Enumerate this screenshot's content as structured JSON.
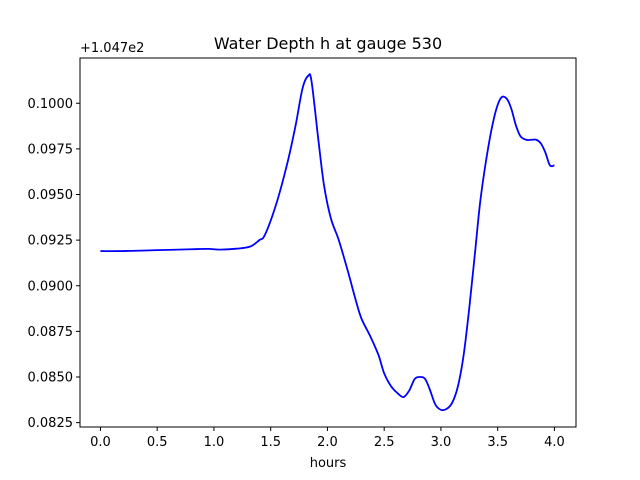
{
  "chart_data": {
    "type": "line",
    "title": "Water Depth h at gauge 530",
    "xlabel": "hours",
    "ylabel": "",
    "offset_label": "+1.047e2",
    "xlim": [
      -0.18,
      4.19
    ],
    "ylim": [
      0.08226,
      0.10248
    ],
    "grid": false,
    "x_ticks": [
      0.0,
      0.5,
      1.0,
      1.5,
      2.0,
      2.5,
      3.0,
      3.5,
      4.0
    ],
    "x_tick_labels": [
      "0.0",
      "0.5",
      "1.0",
      "1.5",
      "2.0",
      "2.5",
      "3.0",
      "3.5",
      "4.0"
    ],
    "y_ticks": [
      0.0825,
      0.085,
      0.0875,
      0.09,
      0.0925,
      0.095,
      0.0975,
      0.1
    ],
    "y_tick_labels": [
      "0.0825",
      "0.0850",
      "0.0875",
      "0.0900",
      "0.0925",
      "0.0950",
      "0.0975",
      "0.1000"
    ],
    "series": [
      {
        "color": "#0000ff",
        "x": [
          0.0,
          0.2,
          0.5,
          0.8,
          0.95,
          1.05,
          1.2,
          1.32,
          1.4,
          1.45,
          1.55,
          1.65,
          1.72,
          1.78,
          1.83,
          1.86,
          1.92,
          1.97,
          2.03,
          2.1,
          2.18,
          2.25,
          2.3,
          2.38,
          2.45,
          2.5,
          2.56,
          2.62,
          2.67,
          2.72,
          2.77,
          2.82,
          2.86,
          2.9,
          2.95,
          3.0,
          3.05,
          3.1,
          3.15,
          3.2,
          3.25,
          3.3,
          3.35,
          3.42,
          3.48,
          3.53,
          3.58,
          3.62,
          3.66,
          3.7,
          3.75,
          3.8,
          3.84,
          3.88,
          3.92,
          3.96,
          4.0
        ],
        "y": [
          0.0919,
          0.0919,
          0.09195,
          0.092,
          0.09202,
          0.09198,
          0.09203,
          0.09215,
          0.0925,
          0.0928,
          0.0945,
          0.0968,
          0.0988,
          0.1008,
          0.1015,
          0.1012,
          0.098,
          0.0955,
          0.0937,
          0.0925,
          0.0908,
          0.0892,
          0.0882,
          0.0872,
          0.0862,
          0.0852,
          0.0845,
          0.0841,
          0.0839,
          0.08425,
          0.0849,
          0.085,
          0.0849,
          0.08435,
          0.0835,
          0.0832,
          0.08325,
          0.0836,
          0.0845,
          0.0862,
          0.0888,
          0.0918,
          0.0948,
          0.0977,
          0.0995,
          0.1003,
          0.10025,
          0.0997,
          0.0988,
          0.0982,
          0.098,
          0.098,
          0.098,
          0.0978,
          0.0973,
          0.0966,
          0.0966
        ]
      }
    ]
  }
}
